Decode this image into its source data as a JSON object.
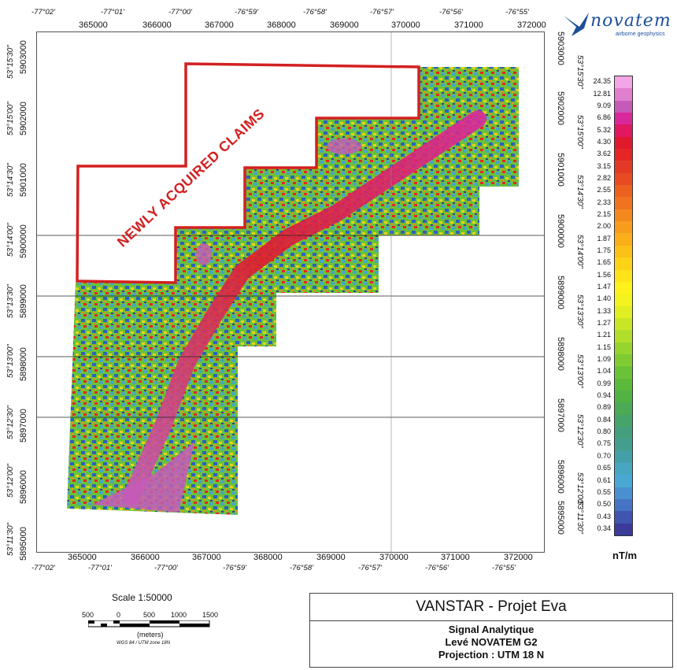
{
  "logo": {
    "name": "novatem",
    "tagline": "airborne geophysics"
  },
  "top_lon_labels": [
    "-77°02'",
    "-77°01'",
    "-77°00'",
    "-76°59'",
    "-76°58'",
    "-76°57'",
    "-76°56'",
    "-76°55'"
  ],
  "bottom_lon_labels": [
    "-77°02'",
    "-77°01'",
    "-77°00'",
    "-76°59'",
    "-76°58'",
    "-76°57'",
    "-76°56'",
    "-76°55'"
  ],
  "easting_labels": [
    "365000",
    "366000",
    "367000",
    "368000",
    "369000",
    "370000",
    "371000",
    "372000"
  ],
  "northing_labels": [
    "5903000",
    "5902000",
    "5901000",
    "5900000",
    "5899000",
    "5898000",
    "5897000",
    "5896000",
    "5895000"
  ],
  "lat_labels": [
    "53°15'30\"",
    "53°15'00\"",
    "53°14'30\"",
    "53°14'00\"",
    "53°13'30\"",
    "53°13'00\"",
    "53°12'30\"",
    "53°12'00\"",
    "53°11'30\""
  ],
  "annotation": "NEWLY ACQUIRED CLAIMS",
  "legend": {
    "unit": "nT/m",
    "values": [
      "24.35",
      "12.81",
      "9.09",
      "6.86",
      "5.32",
      "4.30",
      "3.62",
      "3.15",
      "2.82",
      "2.55",
      "2.33",
      "2.15",
      "2.00",
      "1.87",
      "1.75",
      "1.65",
      "1.56",
      "1.47",
      "1.40",
      "1.33",
      "1.27",
      "1.21",
      "1.15",
      "1.09",
      "1.04",
      "0.99",
      "0.94",
      "0.89",
      "0.84",
      "0.80",
      "0.75",
      "0.70",
      "0.65",
      "0.61",
      "0.55",
      "0.50",
      "0.43",
      "0.34"
    ],
    "colors": [
      "#f2a6e6",
      "#e07fcf",
      "#c65ab8",
      "#d9289c",
      "#e0185f",
      "#e01a2c",
      "#e42626",
      "#e33a25",
      "#e84b22",
      "#ec6020",
      "#f07420",
      "#f4881e",
      "#f79c1d",
      "#f9ae1a",
      "#fbc118",
      "#fdd318",
      "#fee21a",
      "#fff21c",
      "#f4f21f",
      "#e0ee22",
      "#c8e626",
      "#b0de2a",
      "#98d42e",
      "#80ca32",
      "#6cc236",
      "#5cba3a",
      "#52b244",
      "#4aaa56",
      "#46a46a",
      "#44a07c",
      "#449e90",
      "#44a0a8",
      "#48a6c0",
      "#4aa8d4",
      "#4a90d0",
      "#4674c4",
      "#4055b0",
      "#3a3a98"
    ]
  },
  "scale": {
    "title": "Scale 1:50000",
    "ticks": [
      "500",
      "0",
      "500",
      "1000",
      "1500"
    ],
    "unit": "(meters)",
    "datum": "WGS 84 / UTM zone 18N"
  },
  "title_block": {
    "title": "VANSTAR - Projet Eva",
    "line1": "Signal Analytique",
    "line2": "Levé NOVATEM G2",
    "line3": "Projection : UTM 18 N"
  }
}
